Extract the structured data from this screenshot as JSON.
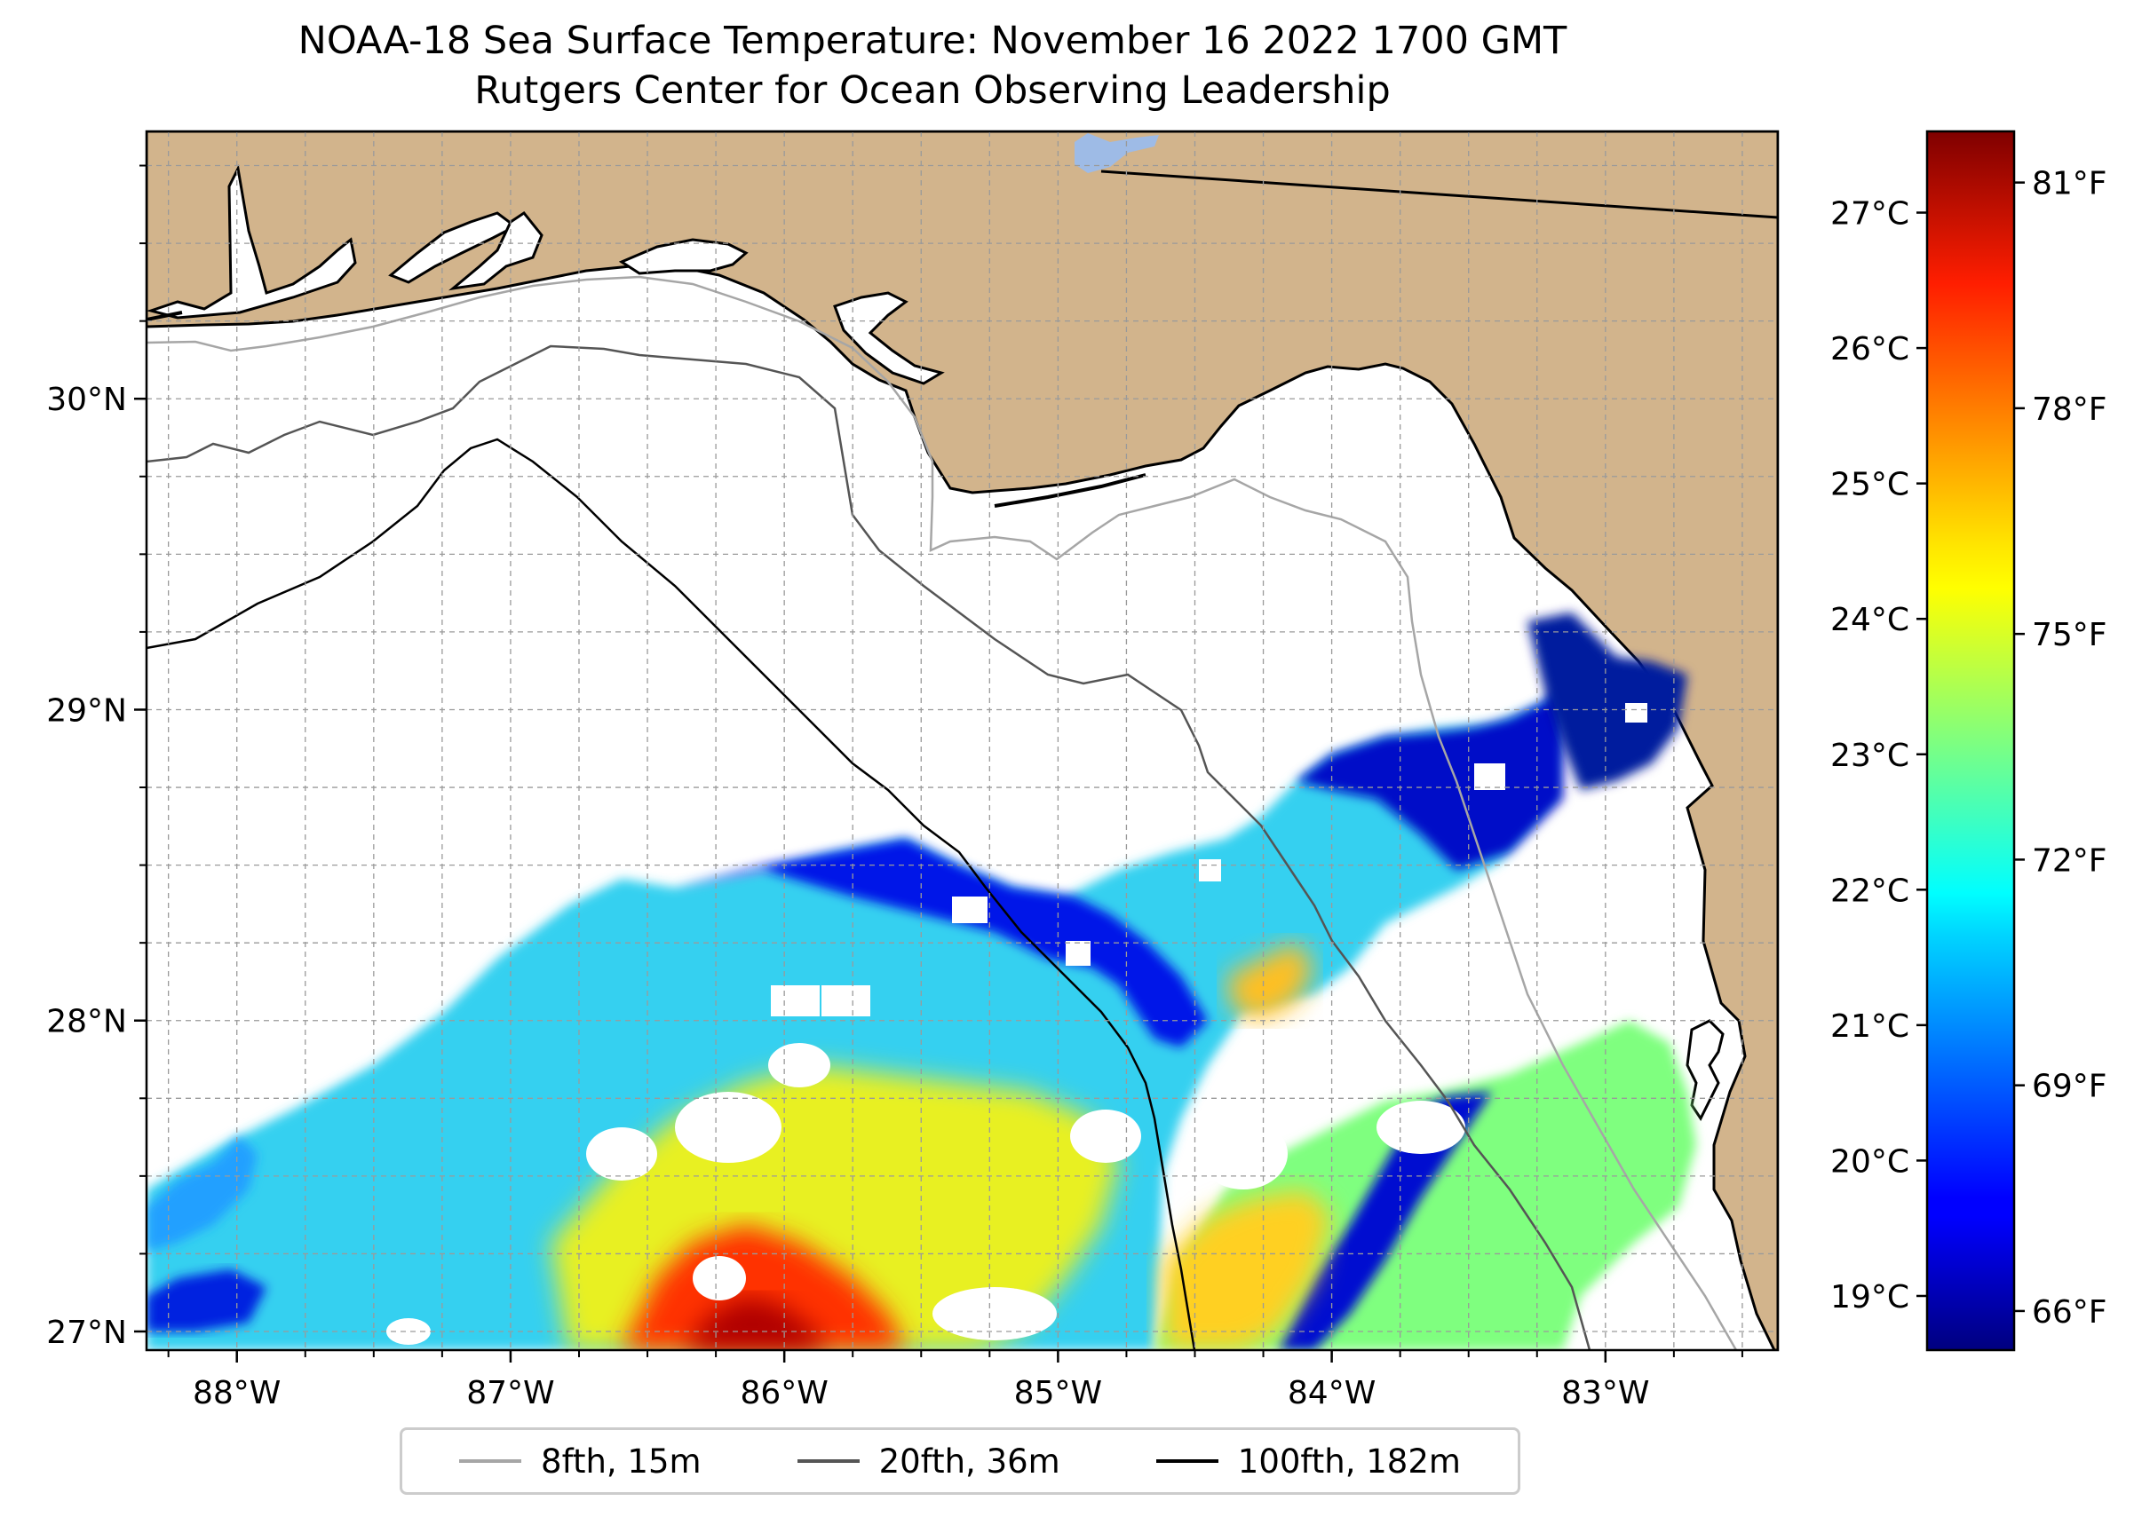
{
  "title": {
    "line1": "NOAA-18 Sea Surface Temperature: November 16 2022 1700 GMT",
    "line2": "Rutgers Center for Ocean Observing Leadership"
  },
  "map": {
    "lon_range": [
      -88.33,
      -82.37
    ],
    "lat_range": [
      26.94,
      30.86
    ],
    "lon_ticks": [
      {
        "value": -88,
        "label": "88°W"
      },
      {
        "value": -87,
        "label": "87°W"
      },
      {
        "value": -86,
        "label": "86°W"
      },
      {
        "value": -85,
        "label": "85°W"
      },
      {
        "value": -84,
        "label": "84°W"
      },
      {
        "value": -83,
        "label": "83°W"
      }
    ],
    "lat_ticks": [
      {
        "value": 27,
        "label": "27°N"
      },
      {
        "value": 28,
        "label": "28°N"
      },
      {
        "value": 29,
        "label": "29°N"
      },
      {
        "value": 30,
        "label": "30°N"
      }
    ],
    "gridlines": true,
    "land_color": "#D2B48C",
    "ocean_no_data_color": "#ffffff"
  },
  "colorbar": {
    "min_c": 18.6,
    "max_c": 27.6,
    "celsius_ticks": [
      {
        "value": 19,
        "label": "19°C"
      },
      {
        "value": 20,
        "label": "20°C"
      },
      {
        "value": 21,
        "label": "21°C"
      },
      {
        "value": 22,
        "label": "22°C"
      },
      {
        "value": 23,
        "label": "23°C"
      },
      {
        "value": 24,
        "label": "24°C"
      },
      {
        "value": 25,
        "label": "25°C"
      },
      {
        "value": 26,
        "label": "26°C"
      },
      {
        "value": 27,
        "label": "27°C"
      }
    ],
    "fahrenheit_ticks": [
      {
        "value": 66,
        "label": "66°F"
      },
      {
        "value": 69,
        "label": "69°F"
      },
      {
        "value": 72,
        "label": "72°F"
      },
      {
        "value": 75,
        "label": "75°F"
      },
      {
        "value": 78,
        "label": "78°F"
      },
      {
        "value": 81,
        "label": "81°F"
      }
    ],
    "colormap": "jet"
  },
  "legend": {
    "items": [
      {
        "label": "8fth, 15m",
        "color": "#a6a6a6"
      },
      {
        "label": "20fth, 36m",
        "color": "#555555"
      },
      {
        "label": "100fth, 182m",
        "color": "#000000"
      }
    ]
  }
}
